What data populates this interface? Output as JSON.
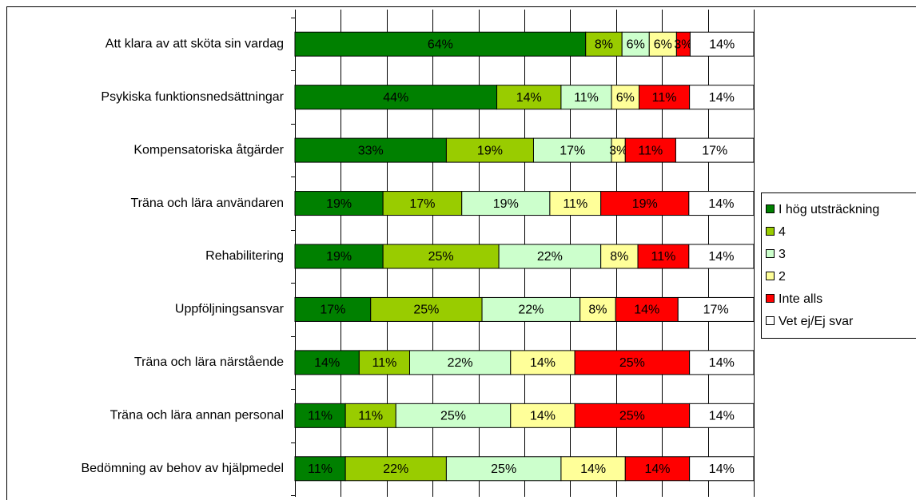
{
  "chart_data": {
    "type": "bar",
    "orientation": "horizontal",
    "stacked": "percent",
    "categories": [
      "Att klara av att sköta sin vardag",
      "Psykiska funktionsnedsättningar",
      "Kompensatoriska åtgärder",
      "Träna och lära användaren",
      "Rehabilitering",
      "Uppföljningsansvar",
      "Träna och lära närstående",
      "Träna och lära annan personal",
      "Bedömning av behov av hjälpmedel"
    ],
    "series": [
      {
        "name": "I hög utsträckning",
        "color": "#008000",
        "values": [
          64,
          44,
          33,
          19,
          19,
          17,
          14,
          11,
          11
        ],
        "value_labels": [
          "64%",
          "44%",
          "33%",
          "19%",
          "19%",
          "17%",
          "14%",
          "11%",
          "11%"
        ]
      },
      {
        "name": "4",
        "color": "#99cc00",
        "values": [
          8,
          14,
          19,
          17,
          25,
          25,
          11,
          11,
          22
        ],
        "value_labels": [
          "8%",
          "14%",
          "19%",
          "17%",
          "25%",
          "25%",
          "11%",
          "11%",
          "22%"
        ]
      },
      {
        "name": "3",
        "color": "#ccffcc",
        "values": [
          6,
          11,
          17,
          19,
          22,
          22,
          22,
          25,
          25
        ],
        "value_labels": [
          "6%",
          "11%",
          "17%",
          "19%",
          "22%",
          "22%",
          "22%",
          "25%",
          "25%"
        ]
      },
      {
        "name": "2",
        "color": "#ffff99",
        "values": [
          6,
          6,
          3,
          11,
          8,
          8,
          14,
          14,
          14
        ],
        "value_labels": [
          "6%",
          "6%",
          "3%",
          "11%",
          "8%",
          "8%",
          "14%",
          "14%",
          "14%"
        ]
      },
      {
        "name": "Inte alls",
        "color": "#ff0000",
        "values": [
          3,
          11,
          11,
          19,
          11,
          14,
          25,
          25,
          14
        ],
        "value_labels": [
          "3%",
          "11%",
          "11%",
          "19%",
          "11%",
          "14%",
          "25%",
          "25%",
          "14%"
        ]
      },
      {
        "name": "Vet ej/Ej svar",
        "color": "#ffffff",
        "values": [
          14,
          14,
          17,
          14,
          14,
          17,
          14,
          14,
          14
        ],
        "value_labels": [
          "14%",
          "14%",
          "17%",
          "14%",
          "14%",
          "17%",
          "14%",
          "14%",
          "14%"
        ]
      }
    ],
    "xlim": [
      0,
      100
    ],
    "xticks": [
      0,
      10,
      20,
      30,
      40,
      50,
      60,
      70,
      80,
      90,
      100
    ],
    "grid": true,
    "legend": "right"
  }
}
